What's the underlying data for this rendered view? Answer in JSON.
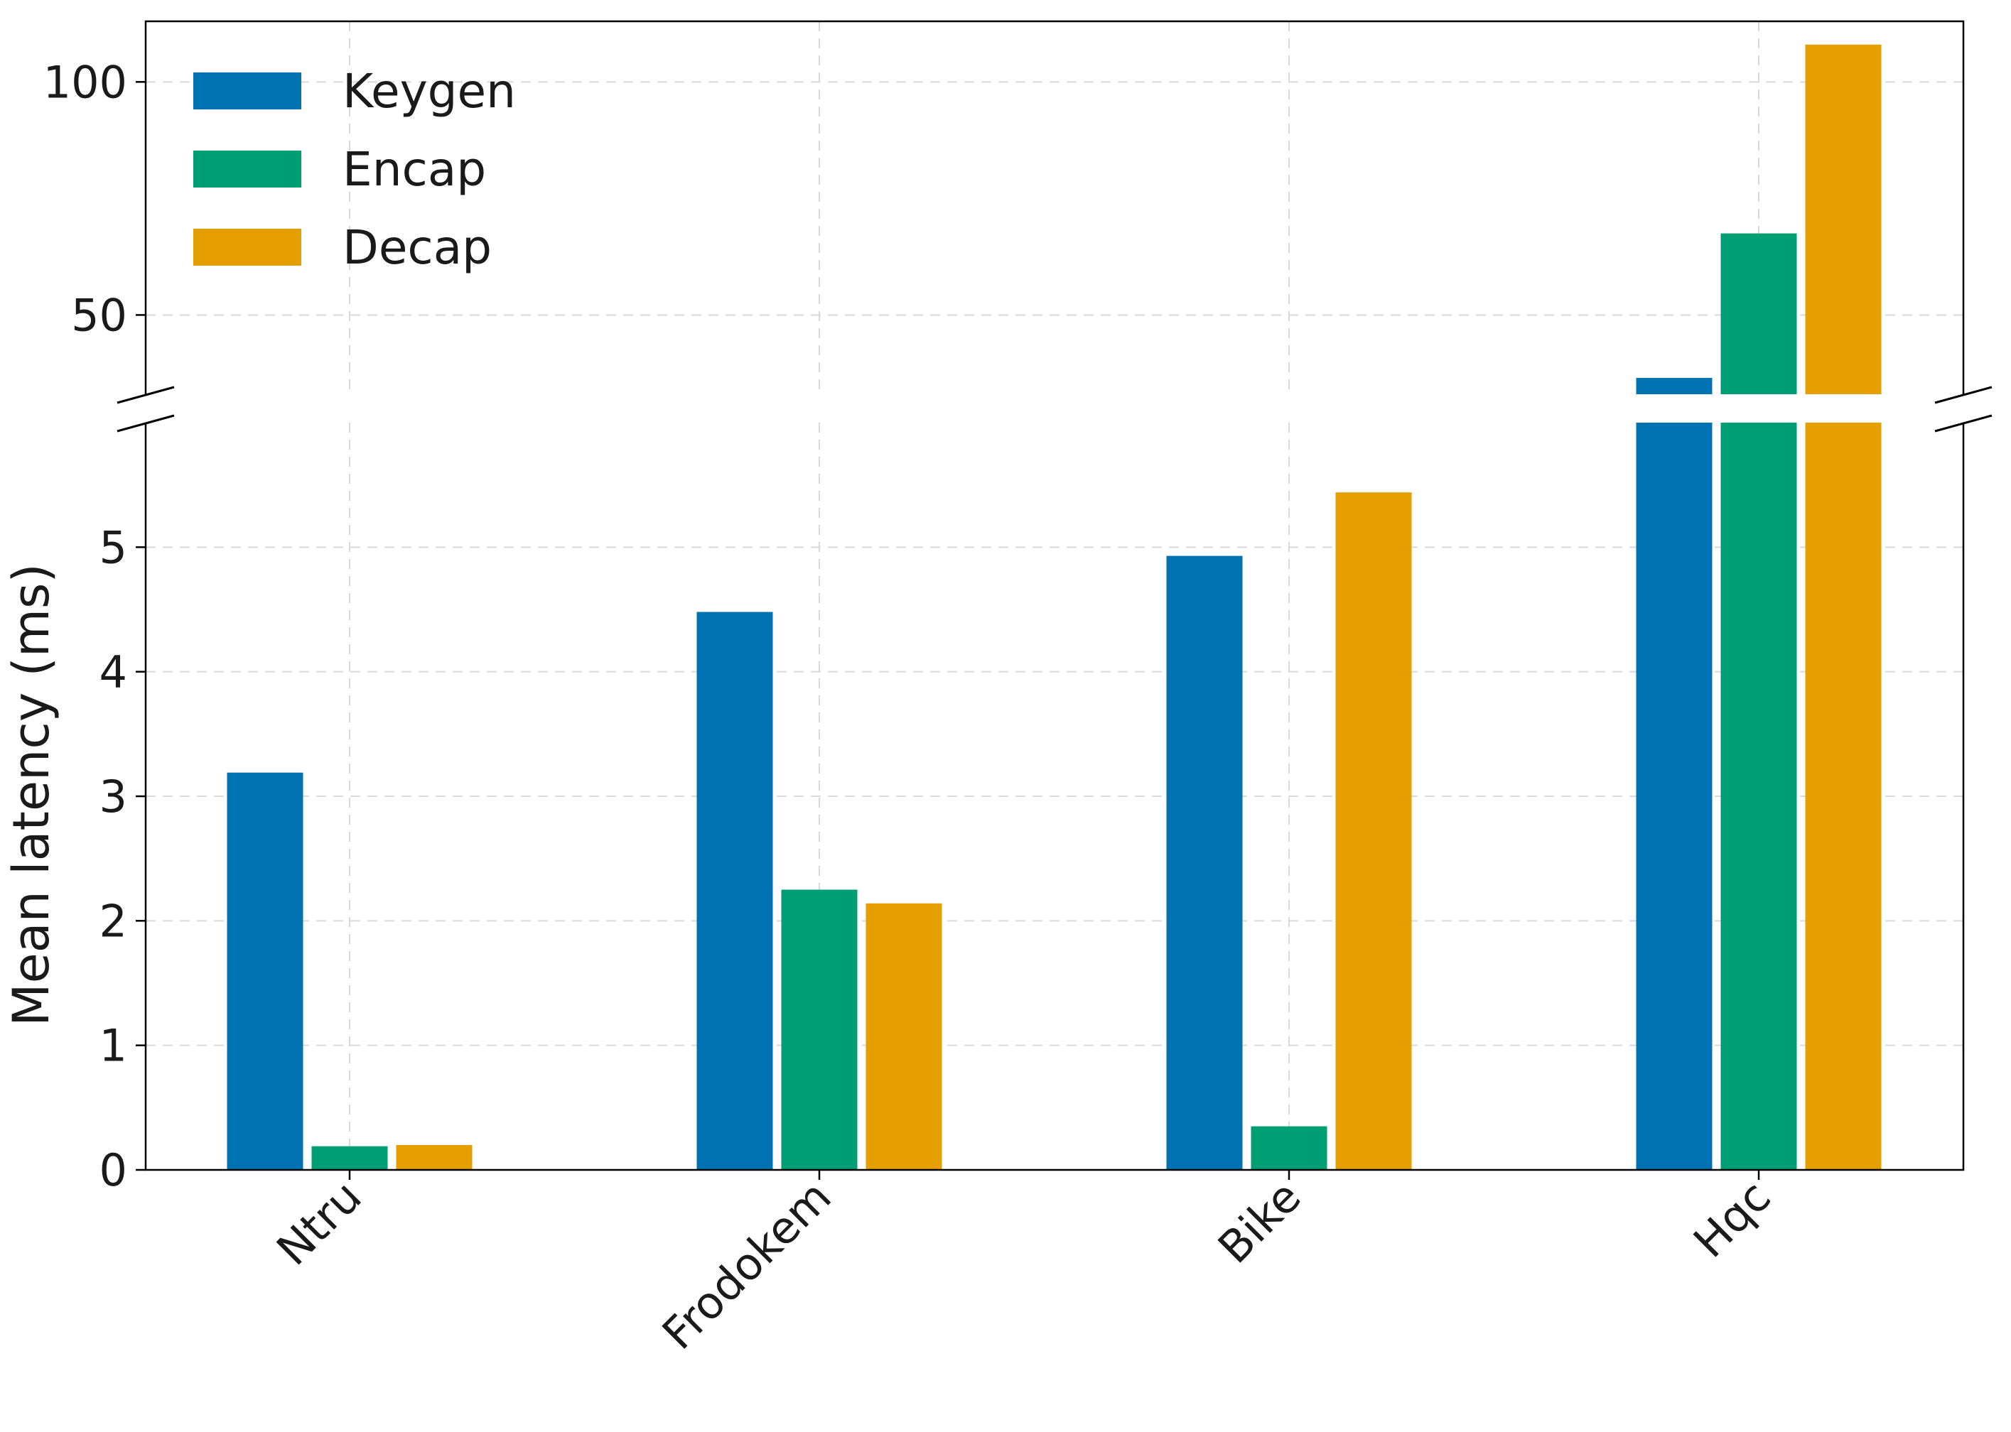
{
  "chart_data": {
    "type": "bar",
    "categories": [
      "Ntru",
      "Frodokem",
      "Bike",
      "Hqc"
    ],
    "ylabel": "Mean latency (ms)",
    "y_axis_break": true,
    "lower_ylim": [
      0,
      6
    ],
    "upper_ylim": [
      33,
      113
    ],
    "lower_yticks": [
      "0",
      "1",
      "2",
      "3",
      "4",
      "5"
    ],
    "upper_yticks": [
      "50",
      "100"
    ],
    "grid": true,
    "legend_position": "top-left",
    "series": [
      {
        "name": "Keygen",
        "color": "#0072b2",
        "values": [
          3.19,
          4.48,
          4.93,
          36.5
        ]
      },
      {
        "name": "Encap",
        "color": "#009e73",
        "values": [
          0.19,
          2.25,
          0.35,
          67.5
        ]
      },
      {
        "name": "Decap",
        "color": "#e69f00",
        "values": [
          0.2,
          2.14,
          5.44,
          108.0
        ]
      }
    ]
  }
}
